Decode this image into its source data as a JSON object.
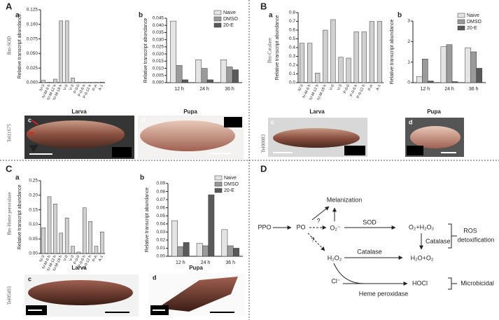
{
  "chart_data": [
    {
      "type": "bar",
      "y_label": "Relative transcript abundance",
      "categories": [
        "IV-3",
        "IV-M-6 h",
        "IV-M-12 h",
        "IV-M-18 h",
        "V-0",
        "V-3",
        "P-0-0",
        "P-0-6 h",
        "P-0-12 h",
        "P-A",
        "A-1"
      ],
      "values": [
        0.004,
        0.0005,
        0.006,
        0.106,
        0.106,
        0.008,
        0.0005,
        0.0005,
        0.0005,
        0.0005,
        0.001
      ],
      "color": "#d0d0d0",
      "ylim": [
        0,
        0.125
      ],
      "yticks": [
        {
          "value": 0,
          "label": "0.000"
        },
        {
          "value": 0.025,
          "label": "0.025"
        },
        {
          "value": 0.05,
          "label": "0.050"
        },
        {
          "value": 0.075,
          "label": "0.075"
        },
        {
          "value": 0.1,
          "label": "0.100"
        },
        {
          "value": 0.125,
          "label": "0.125"
        }
      ]
    },
    {
      "type": "grouped_bar",
      "y_label": "Relative transcript abundance",
      "categories": [
        "12 h",
        "24 h",
        "36 h"
      ],
      "series": [
        {
          "name": "Naive",
          "color": "#e4e4e4",
          "values": [
            0.043,
            0.016,
            0.016
          ]
        },
        {
          "name": "DMSO",
          "color": "#9a9a9a",
          "values": [
            0.012,
            0.01,
            0.011
          ]
        },
        {
          "name": "20-E",
          "color": "#5a5a5a",
          "values": [
            0.002,
            0.002,
            0.009
          ]
        }
      ],
      "ylim": [
        0,
        0.045
      ],
      "yticks": [
        {
          "value": 0,
          "label": "0.000"
        },
        0.005,
        {
          "value": 0.01,
          "label": "0.010"
        },
        0.015,
        {
          "value": 0.02,
          "label": "0.020"
        },
        0.025,
        {
          "value": 0.03,
          "label": "0.030"
        },
        0.035,
        {
          "value": 0.04,
          "label": "0.040"
        },
        0.045
      ]
    },
    {
      "type": "bar",
      "y_label": "Relative transcript abundance",
      "categories": [
        "IV-3",
        "IV-M-6 h",
        "IV-M-12 h",
        "IV-M-18 h",
        "V-0",
        "V-3",
        "P-0-0",
        "P-0-6 h",
        "P-0-12 h",
        "P-A",
        "A-1"
      ],
      "values": [
        0.45,
        0.45,
        0.11,
        0.6,
        0.72,
        0.29,
        0.28,
        0.58,
        0.58,
        0.7,
        0.7
      ],
      "color": "#d0d0d0",
      "ylim": [
        0,
        0.8
      ],
      "yticks": [
        {
          "value": 0,
          "label": "0.0"
        },
        0.1,
        0.2,
        0.3,
        0.4,
        0.5,
        0.6,
        0.7,
        0.8
      ]
    },
    {
      "type": "grouped_bar",
      "y_label": "Relative transcript abundance",
      "categories": [
        "12 h",
        "24 h",
        "36 h"
      ],
      "series": [
        {
          "name": "Naive",
          "color": "#e4e4e4",
          "values": [
            0.3,
            1.75,
            1.7
          ]
        },
        {
          "name": "DMSO",
          "color": "#9a9a9a",
          "values": [
            1.15,
            1.85,
            1.5
          ]
        },
        {
          "name": "20-E",
          "color": "#5a5a5a",
          "values": [
            0.08,
            0.05,
            0.7
          ]
        }
      ],
      "ylim": [
        0,
        3
      ],
      "yticks": [
        0,
        1,
        2,
        3
      ]
    },
    {
      "type": "bar",
      "y_label": "Relative transcript abundance",
      "categories": [
        "IV-3",
        "IV-M-6 h",
        "IV-M-12 h",
        "IV-M-18 h",
        "V-0",
        "V-3",
        "P-0-0",
        "P-0-6 h",
        "P-0-12 h",
        "P-A",
        "A-1"
      ],
      "values": [
        0.088,
        0.195,
        0.17,
        0.07,
        0.122,
        0.025,
        0.005,
        0.157,
        0.11,
        0.025,
        0.074
      ],
      "color": "#d0d0d0",
      "ylim": [
        0,
        0.25
      ],
      "yticks": [
        {
          "value": 0,
          "label": "0.00"
        },
        0.05,
        {
          "value": 0.1,
          "label": "0.10"
        },
        0.15,
        {
          "value": 0.2,
          "label": "0.20"
        },
        0.25
      ]
    },
    {
      "type": "grouped_bar",
      "y_label": "Relative transcript abundance",
      "categories": [
        "12 h",
        "24 h",
        "36 h"
      ],
      "series": [
        {
          "name": "Naive",
          "color": "#e4e4e4",
          "values": [
            0.044,
            0.016,
            0.033
          ]
        },
        {
          "name": "DMSO",
          "color": "#9a9a9a",
          "values": [
            0.012,
            0.013,
            0.013
          ]
        },
        {
          "name": "20-E",
          "color": "#5a5a5a",
          "values": [
            0.017,
            0.076,
            0.01
          ]
        }
      ],
      "ylim": [
        0,
        0.09
      ],
      "yticks": [
        {
          "value": 0,
          "label": "0.00"
        },
        0.01,
        0.02,
        0.03,
        0.04,
        0.05,
        0.06,
        0.07,
        0.08,
        0.09
      ]
    }
  ],
  "panels": [
    {
      "label": "A",
      "sub": [
        "a",
        "b",
        "c",
        "d"
      ],
      "gene": "Bm-SOD",
      "id": "Tel11675",
      "larva": "Larva",
      "pupa": "Pupa"
    },
    {
      "label": "B",
      "sub": [
        "a",
        "b",
        "c",
        "d"
      ],
      "gene": "Bm-Catalase",
      "id": "Tel00083",
      "larva": "Larva",
      "pupa": "Pupa"
    },
    {
      "label": "C",
      "sub": [
        "a",
        "b",
        "c",
        "d"
      ],
      "gene": "Bm-Heme peroxidase",
      "id": "Tel05493",
      "larva": "Larva",
      "pupa": "Pupa"
    },
    {
      "label": "D"
    }
  ],
  "diagram": {
    "melanization": "Melanization",
    "ppo": "PPO",
    "po": "PO",
    "q1": "?",
    "o2": "O₂⁻",
    "sod": "SOD",
    "o2h2o2": "O₂+H₂O₂",
    "catalase1": "Catalase",
    "ros": "ROS",
    "detox": "detoxification",
    "q2": "?",
    "h2o2": "H₂O₂",
    "catalase2": "Catalase",
    "h2oo2": "H₂O+O₂",
    "cl": "Cl⁻",
    "hocl": "HOCl",
    "microbicidal": "Microbicidal",
    "heme": "Heme peroxidase"
  }
}
